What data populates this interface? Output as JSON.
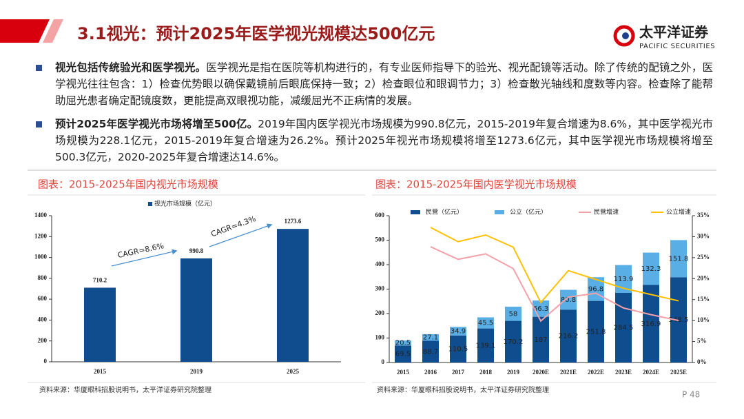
{
  "header": {
    "title": "3.1视光：预计2025年医学视光规模达500亿元",
    "logo_cn": "太平洋证券",
    "logo_en": "PACIFIC SECURITIES"
  },
  "bullets": [
    {
      "bold": "视光包括传统验光和医学视光。",
      "text": "医学视光是指在医院等机构进行的，有专业医师指导下的验光、视光配镜等活动。除了传统的配镜之外，医学视光往往包含：1）检查优势眼以确保戴镜前后眼底保持一致；2）检查眼位和眼调节力；3）检查散光轴线和度数等内容。检查除了能帮助屈光患者确定配镜度数，更能提高双眼视功能，减缓屈光不正病情的发展。"
    },
    {
      "bold": "预计2025年医学视光市场将增至500亿。",
      "text": "2019年国内医学视光市场规模为990.8亿元，2015-2019年复合增速为8.6%，其中医学视光市场规模为228.1亿元，2015-2019年复合增速为26.2%。预计2025年视光市场规模将增至1273.6亿元，其中医学视光市场规模将增至500.3亿元，2020-2025年复合增速达14.6%。"
    }
  ],
  "chart_data": [
    {
      "type": "bar",
      "title": "图表：2015-2025年国内视光市场规模",
      "categories": [
        "2015",
        "2019",
        "2025"
      ],
      "series": [
        {
          "name": "视光市场规模（亿元）",
          "color": "#0f4d8f",
          "values": [
            710.2,
            990.8,
            1273.6
          ]
        }
      ],
      "ylim": [
        0,
        1400
      ],
      "yticks": [
        0,
        200,
        400,
        600,
        800,
        1000,
        1200,
        1400
      ],
      "annotations": [
        "CAGR=8.6%",
        "CAGR=4.3%"
      ],
      "source": "资料来源：华厦眼科招股说明书，太平洋证券研究院整理"
    },
    {
      "type": "combo",
      "title": "图表：2015-2025年国内医学视光市场规模",
      "categories": [
        "2015",
        "2016",
        "2017",
        "2018",
        "2019",
        "2020E",
        "2021E",
        "2022E",
        "2023E",
        "2024E",
        "2025E"
      ],
      "series": [
        {
          "name": "民营（亿元）",
          "type": "bar",
          "color": "#0f4d8f",
          "values": [
            69.5,
            88.7,
            110.5,
            139.1,
            170.2,
            187,
            216.2,
            251.8,
            284.5,
            316.9,
            348.5
          ]
        },
        {
          "name": "公立（亿元）",
          "type": "bar",
          "color": "#5aaee6",
          "values": [
            20.5,
            27.1,
            34.9,
            45.5,
            58,
            66.3,
            80.8,
            96.8,
            113.9,
            132.3,
            151.8
          ]
        },
        {
          "name": "民营增速",
          "type": "line",
          "axis": "y2",
          "color": "#f2a1a8",
          "values": [
            null,
            27.6,
            24.6,
            25.9,
            22.4,
            9.9,
            15.6,
            16.5,
            13.0,
            11.4,
            10.0
          ]
        },
        {
          "name": "公立增速",
          "type": "line",
          "axis": "y2",
          "color": "#ffc000",
          "values": [
            null,
            32.2,
            28.8,
            30.4,
            27.5,
            14.3,
            21.9,
            19.8,
            17.7,
            16.2,
            14.7
          ]
        }
      ],
      "ylim": [
        0,
        600
      ],
      "yticks": [
        0,
        100,
        200,
        300,
        400,
        500,
        600
      ],
      "y2lim": [
        0,
        35
      ],
      "y2ticks": [
        {
          "value": 0,
          "label": "0%"
        },
        {
          "value": 5,
          "label": "5%"
        },
        {
          "value": 10,
          "label": "10%"
        },
        {
          "value": 15,
          "label": "15%"
        },
        {
          "value": 20,
          "label": "20%"
        },
        {
          "value": 25,
          "label": "25%"
        },
        {
          "value": 30,
          "label": "30%"
        },
        {
          "value": 35,
          "label": "35%"
        }
      ],
      "source": "资料来源：华厦眼科招股说明书，太平洋证券研究院整理"
    }
  ],
  "page": "P 48"
}
